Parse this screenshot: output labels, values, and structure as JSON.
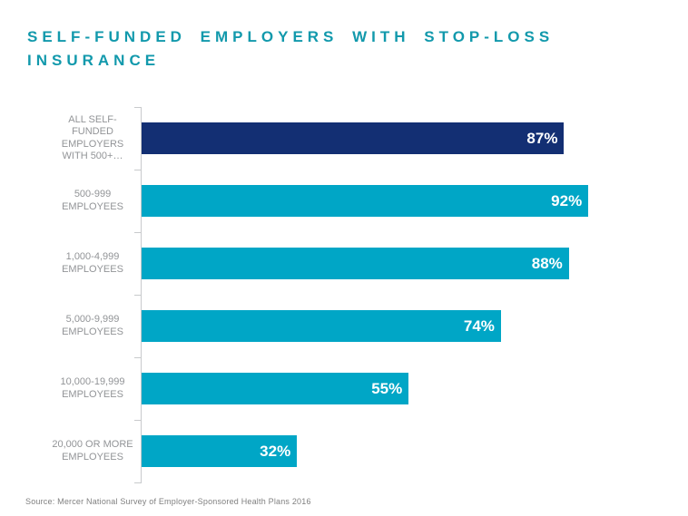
{
  "page": {
    "background": "#FFFFFF"
  },
  "chart_data": {
    "type": "bar",
    "orientation": "horizontal",
    "title": "SELF-FUNDED EMPLOYERS WITH STOP-LOSS INSURANCE",
    "categories": [
      "ALL SELF-FUNDED EMPLOYERS WITH 500+…",
      "500-999 EMPLOYEES",
      "1,000-4,999 EMPLOYEES",
      "5,000-9,999 EMPLOYEES",
      "10,000-19,999 EMPLOYEES",
      "20,000 OR MORE EMPLOYEES"
    ],
    "category_label_lines": [
      [
        "ALL SELF-",
        "FUNDED",
        "EMPLOYERS",
        "WITH 500+…"
      ],
      [
        "500-999",
        "EMPLOYEES"
      ],
      [
        "1,000-4,999",
        "EMPLOYEES"
      ],
      [
        "5,000-9,999",
        "EMPLOYEES"
      ],
      [
        "10,000-19,999",
        "EMPLOYEES"
      ],
      [
        "20,000 OR MORE",
        "EMPLOYEES"
      ]
    ],
    "values": [
      87,
      92,
      88,
      74,
      55,
      32
    ],
    "value_labels": [
      "87%",
      "92%",
      "88%",
      "74%",
      "55%",
      "32%"
    ],
    "xlim": [
      0,
      100
    ],
    "bar_colors": [
      "#132F73",
      "#00A6C6",
      "#00A6C6",
      "#00A6C6",
      "#00A6C6",
      "#00A6C6"
    ],
    "grid": false,
    "legend": false,
    "value_label_position": "inside-end",
    "source": "Source: Mercer National Survey of Employer-Sponsored Health Plans 2016",
    "colors": {
      "title": "#1299AC",
      "category_label": "#929497",
      "axis": "#C8CACC",
      "value_label": "#FFFFFF",
      "source": "#808080"
    }
  }
}
